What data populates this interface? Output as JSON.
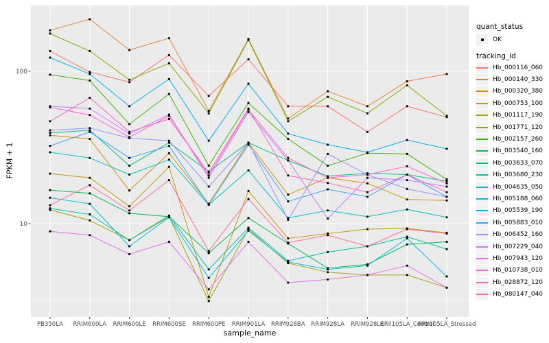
{
  "chart_data": {
    "type": "line",
    "title": "",
    "xlabel": "sample_name",
    "ylabel": "FPKM + 1",
    "y_scale": "log10",
    "y_ticks": [
      100,
      10
    ],
    "y_minor_ticks": [
      31.62,
      3.162
    ],
    "ylim": [
      2.4,
      270
    ],
    "grid": true,
    "panel_bg": "#EBEBEB",
    "grid_color": "#FFFFFF",
    "axis_text_color": "#4D4D4D",
    "point_color": "#000000",
    "legend": {
      "position": "right",
      "quant_status_title": "quant_status",
      "quant_status_entries": [
        {
          "label": "OK",
          "shape": "point",
          "color": "#000000"
        }
      ],
      "tracking_id_title": "tracking_id"
    },
    "categories": [
      "PB350LA",
      "RRIM600LA",
      "RRIM600LE",
      "RRIM600SE",
      "RRIM600PE",
      "RRIM901LA",
      "RRIM928BA",
      "RRIM928LA",
      "RRIM928LE",
      "RRII105LA_Control",
      "RRII105LA_Stressed"
    ],
    "series": [
      {
        "name": "Hb_000116_060",
        "color": "#F8766D",
        "quant_status": "OK",
        "values": [
          136,
          99,
          85,
          128,
          69,
          120,
          59,
          59,
          40,
          59,
          50
        ]
      },
      {
        "name": "Hb_000140_330",
        "color": "#EA8331",
        "quant_status": "OK",
        "values": [
          186,
          220,
          138,
          165,
          55,
          163,
          49,
          74,
          59,
          86,
          96
        ]
      },
      {
        "name": "Hb_000320_380",
        "color": "#D89000",
        "quant_status": "OK",
        "values": [
          38,
          36,
          16.5,
          29,
          13.5,
          34,
          15.5,
          20,
          18.4,
          14.4,
          14.2
        ]
      },
      {
        "name": "Hb_000753_100",
        "color": "#C09B00",
        "quant_status": "OK",
        "values": [
          21.3,
          20,
          13,
          23.6,
          3.3,
          16.4,
          8,
          8.6,
          9.2,
          9.3,
          8.7
        ]
      },
      {
        "name": "Hb_001117_190",
        "color": "#A3A500",
        "quant_status": "OK",
        "values": [
          12.3,
          10.5,
          7.8,
          11.1,
          3.1,
          9.2,
          5.5,
          4.8,
          4.6,
          4.6,
          3.8
        ]
      },
      {
        "name": "Hb_001771_120",
        "color": "#7CAE00",
        "quant_status": "OK",
        "values": [
          177,
          136,
          88,
          113,
          53,
          161,
          47,
          68,
          53,
          81,
          51
        ]
      },
      {
        "name": "Hb_002157_260",
        "color": "#39B600",
        "quant_status": "OK",
        "values": [
          95,
          87,
          45,
          71,
          24,
          62,
          36,
          24,
          29,
          28.7,
          19.5
        ]
      },
      {
        "name": "Hb_003540_160",
        "color": "#00BB4E",
        "quant_status": "OK",
        "values": [
          16.6,
          15.8,
          11.7,
          11.1,
          6.4,
          10.9,
          7.4,
          5.1,
          5.4,
          7.3,
          7.6
        ]
      },
      {
        "name": "Hb_003633_070",
        "color": "#00BF7D",
        "quant_status": "OK",
        "values": [
          39.5,
          41,
          24,
          34,
          22,
          34,
          26,
          20.5,
          21.4,
          21,
          19
        ]
      },
      {
        "name": "Hb_003680_230",
        "color": "#00C1A3",
        "quant_status": "OK",
        "values": [
          12.6,
          11.5,
          7.8,
          11.3,
          5,
          9.4,
          5.7,
          6.5,
          7.1,
          8.2,
          6.8
        ]
      },
      {
        "name": "Hb_004635_050",
        "color": "#00BFC4",
        "quant_status": "OK",
        "values": [
          29.4,
          27,
          21,
          26.3,
          13.3,
          22.4,
          10.9,
          12.2,
          11.1,
          12.4,
          11
        ]
      },
      {
        "name": "Hb_005188_060",
        "color": "#00BAE0",
        "quant_status": "OK",
        "values": [
          14.8,
          13.5,
          7.1,
          11,
          4.4,
          9,
          5.6,
          5,
          5.3,
          8,
          4.5
        ]
      },
      {
        "name": "Hb_005539_190",
        "color": "#00B0F6",
        "quant_status": "OK",
        "values": [
          123,
          96,
          59,
          89,
          35,
          83,
          39,
          33,
          29.4,
          35.4,
          31
        ]
      },
      {
        "name": "Hb_005883_010",
        "color": "#35A2FF",
        "quant_status": "OK",
        "values": [
          32.4,
          40,
          27,
          32.4,
          13.3,
          33,
          14,
          16.8,
          15,
          21,
          15
        ]
      },
      {
        "name": "Hb_006452_160",
        "color": "#9590FF",
        "quant_status": "OK",
        "values": [
          41,
          42.4,
          36.4,
          35,
          17.5,
          34,
          10.6,
          28.7,
          21,
          16.9,
          15
        ]
      },
      {
        "name": "Hb_007229_040",
        "color": "#C77CFF",
        "quant_status": "OK",
        "values": [
          59,
          57,
          39,
          52,
          20,
          54,
          26,
          10.8,
          20,
          19.3,
          17.5
        ]
      },
      {
        "name": "Hb_007943_120",
        "color": "#E76BF3",
        "quant_status": "OK",
        "values": [
          8.9,
          8.4,
          6.3,
          7.6,
          3.7,
          7.6,
          4.1,
          4.3,
          4.6,
          5.3,
          3.8
        ]
      },
      {
        "name": "Hb_010738_010",
        "color": "#FA62DB",
        "quant_status": "OK",
        "values": [
          58,
          51.7,
          37,
          51,
          20.7,
          56,
          27,
          20,
          21,
          23.8,
          18.4
        ]
      },
      {
        "name": "Hb_028872_120",
        "color": "#FF62BC",
        "quant_status": "OK",
        "values": [
          47,
          67,
          40,
          48.7,
          21.6,
          57,
          20.7,
          18.5,
          16.1,
          21,
          16.1
        ]
      },
      {
        "name": "Hb_080147_040",
        "color": "#FF6A98",
        "quant_status": "OK",
        "values": [
          13.2,
          17.9,
          12.2,
          19.3,
          6.6,
          14.5,
          7.5,
          8.4,
          7.1,
          9.2,
          8.6
        ]
      }
    ]
  }
}
